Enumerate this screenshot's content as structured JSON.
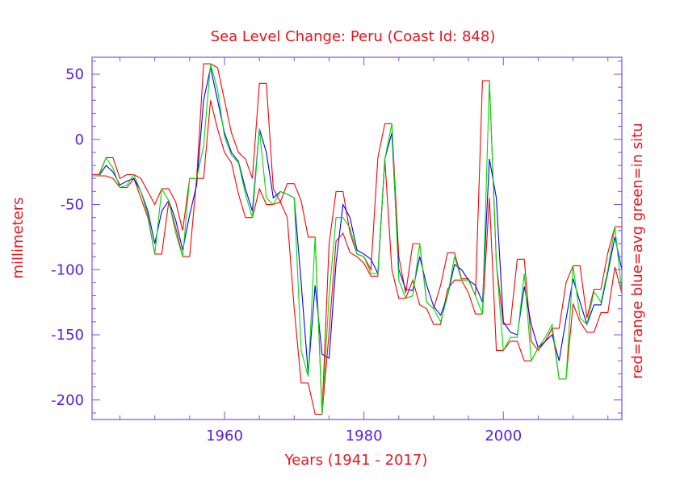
{
  "colors": {
    "text": "#e8141c",
    "axis": "#7a4df0",
    "tick_text": "#5b1de0",
    "range": "#ff0000",
    "avg": "#0000ff",
    "in_situ": "#00dd00"
  },
  "chart_data": {
    "type": "line",
    "title": "Sea Level Change: Peru (Coast Id: 848)",
    "xlabel": "Years (1941 - 2017)",
    "ylabel": "millimeters",
    "right_label": "red=range  blue=avg  green=in situ",
    "xlim": [
      1941,
      2017
    ],
    "ylim": [
      -215,
      63
    ],
    "xticks": [
      1960,
      1980,
      2000
    ],
    "yticks": [
      50,
      0,
      -50,
      -100,
      -150,
      -200
    ],
    "grid": false,
    "years": [
      1941,
      1942,
      1943,
      1944,
      1945,
      1946,
      1947,
      1948,
      1949,
      1950,
      1951,
      1952,
      1953,
      1954,
      1955,
      1956,
      1957,
      1958,
      1959,
      1960,
      1961,
      1962,
      1963,
      1964,
      1965,
      1966,
      1967,
      1968,
      1969,
      1970,
      1971,
      1972,
      1973,
      1974,
      1975,
      1976,
      1977,
      1978,
      1979,
      1980,
      1981,
      1982,
      1983,
      1984,
      1985,
      1986,
      1987,
      1988,
      1989,
      1990,
      1991,
      1992,
      1993,
      1994,
      1995,
      1996,
      1997,
      1998,
      1999,
      2000,
      2001,
      2002,
      2003,
      2004,
      2005,
      2006,
      2007,
      2008,
      2009,
      2010,
      2011,
      2012,
      2013,
      2014,
      2015,
      2016,
      2017
    ],
    "series": [
      {
        "name": "range_upper",
        "color_key": "range",
        "values": [
          -27,
          -27,
          -14,
          -14,
          -30,
          -27,
          -27,
          -30,
          -40,
          -50,
          -38,
          -38,
          -48,
          -70,
          -30,
          -30,
          58,
          58,
          55,
          30,
          5,
          -10,
          -15,
          -30,
          43,
          43,
          -38,
          -48,
          -34,
          -34,
          -47,
          -75,
          -75,
          -210,
          -80,
          -40,
          -40,
          -72,
          -88,
          -90,
          -100,
          -14,
          12,
          12,
          -90,
          -118,
          -80,
          -80,
          -125,
          -130,
          -112,
          -87,
          -87,
          -107,
          -107,
          -120,
          45,
          45,
          -95,
          -142,
          -142,
          -92,
          -92,
          -155,
          -162,
          -155,
          -145,
          -145,
          -110,
          -97,
          -97,
          -137,
          -115,
          -115,
          -87,
          -67,
          -67
        ]
      },
      {
        "name": "range_lower",
        "color_key": "range",
        "values": [
          -28,
          -28,
          -28,
          -30,
          -37,
          -37,
          -30,
          -45,
          -60,
          -88,
          -88,
          -48,
          -68,
          -90,
          -90,
          -30,
          -30,
          30,
          8,
          -10,
          -18,
          -42,
          -60,
          -60,
          -38,
          -50,
          -50,
          -48,
          -60,
          -130,
          -187,
          -187,
          -211,
          -211,
          -148,
          -78,
          -72,
          -87,
          -90,
          -95,
          -105,
          -105,
          -15,
          -100,
          -122,
          -122,
          -108,
          -127,
          -130,
          -142,
          -142,
          -115,
          -108,
          -108,
          -118,
          -134,
          -134,
          -45,
          -162,
          -162,
          -155,
          -155,
          -170,
          -170,
          -160,
          -155,
          -145,
          -184,
          -184,
          -126,
          -140,
          -148,
          -148,
          -133,
          -133,
          -98,
          -118
        ]
      },
      {
        "name": "avg",
        "color_key": "avg",
        "values": [
          -28,
          -28,
          -20,
          -25,
          -35,
          -32,
          -30,
          -40,
          -55,
          -80,
          -55,
          -47,
          -62,
          -85,
          -58,
          -35,
          30,
          55,
          30,
          5,
          -10,
          -17,
          -38,
          -55,
          8,
          -10,
          -45,
          -40,
          -42,
          -45,
          -110,
          -180,
          -112,
          -165,
          -168,
          -95,
          -50,
          -60,
          -85,
          -88,
          -92,
          -103,
          -15,
          5,
          -100,
          -115,
          -116,
          -90,
          -112,
          -128,
          -135,
          -120,
          -96,
          -100,
          -108,
          -112,
          -125,
          -15,
          -45,
          -140,
          -148,
          -150,
          -113,
          -142,
          -160,
          -155,
          -150,
          -170,
          -138,
          -107,
          -125,
          -142,
          -127,
          -127,
          -102,
          -75,
          -100
        ]
      },
      {
        "name": "in_situ",
        "color_key": "in_situ",
        "values": [
          -28,
          -28,
          -14,
          -22,
          -37,
          -35,
          -27,
          -40,
          -58,
          -88,
          -38,
          -47,
          -72,
          -90,
          -30,
          -30,
          -5,
          58,
          38,
          2,
          -12,
          -18,
          -42,
          -60,
          8,
          -45,
          -50,
          -40,
          -42,
          -45,
          -162,
          -182,
          -75,
          -211,
          -120,
          -60,
          -60,
          -68,
          -88,
          -90,
          -103,
          -103,
          -15,
          12,
          -108,
          -122,
          -120,
          -80,
          -125,
          -130,
          -140,
          -120,
          -90,
          -108,
          -108,
          -120,
          -134,
          45,
          -95,
          -162,
          -152,
          -152,
          -103,
          -170,
          -160,
          -152,
          -142,
          -184,
          -184,
          -97,
          -137,
          -142,
          -117,
          -125,
          -100,
          -67,
          -118
        ]
      }
    ]
  }
}
